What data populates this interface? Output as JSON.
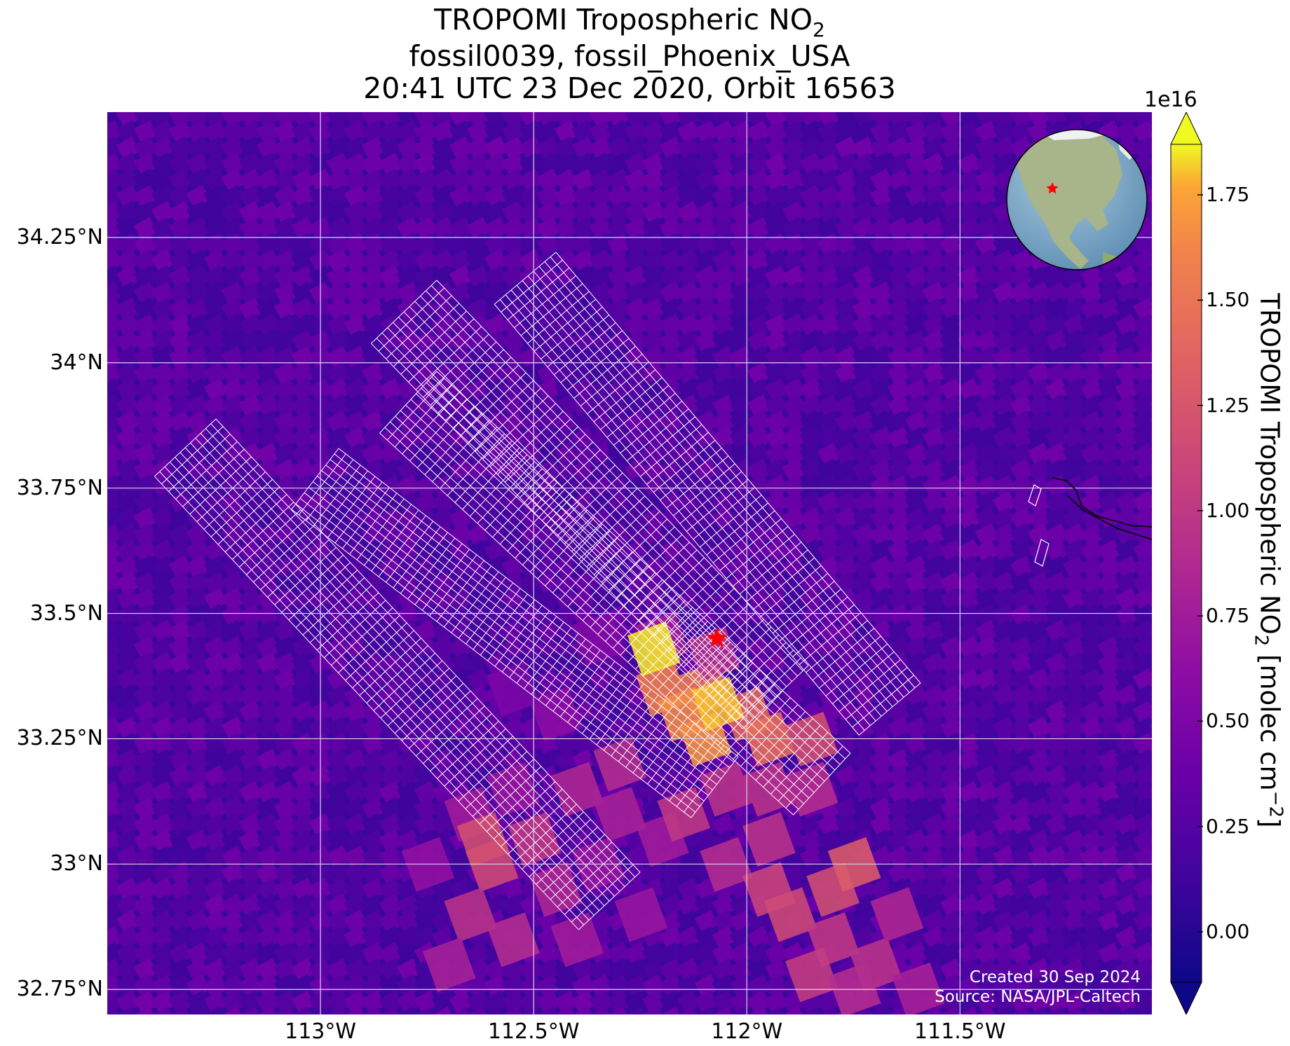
{
  "title": {
    "line1_prefix": "TROPOMI Tropospheric NO",
    "line1_sub": "2",
    "line2": "fossil0039, fossil_Phoenix_USA",
    "line3": "20:41 UTC 23 Dec 2020, Orbit 16563"
  },
  "map": {
    "projection_extent": {
      "lon": [
        -113.5,
        -111.05
      ],
      "lat": [
        32.7,
        34.5
      ]
    },
    "lat_ticks": [
      {
        "value": 34.25,
        "label": "34.25°N"
      },
      {
        "value": 34.0,
        "label": "34°N"
      },
      {
        "value": 33.75,
        "label": "33.75°N"
      },
      {
        "value": 33.5,
        "label": "33.5°N"
      },
      {
        "value": 33.25,
        "label": "33.25°N"
      },
      {
        "value": 33.0,
        "label": "33°N"
      },
      {
        "value": 32.75,
        "label": "32.75°N"
      }
    ],
    "lon_ticks": [
      {
        "value": -113.0,
        "label": "113°W"
      },
      {
        "value": -112.5,
        "label": "112.5°W"
      },
      {
        "value": -112.0,
        "label": "112°W"
      },
      {
        "value": -111.5,
        "label": "111.5°W"
      }
    ],
    "target_marker": {
      "lon": -112.07,
      "lat": 33.45,
      "symbol": "star",
      "color": "#ff0000"
    },
    "inset_globe": {
      "region": "North America",
      "marker_color": "#ff0000"
    }
  },
  "colorbar": {
    "colormap": "plasma",
    "vmin": -0.12,
    "vmax": 1.87,
    "exponent_label": "1e16",
    "ticks": [
      {
        "value": 0.0,
        "label": "0.00"
      },
      {
        "value": 0.25,
        "label": "0.25"
      },
      {
        "value": 0.5,
        "label": "0.50"
      },
      {
        "value": 0.75,
        "label": "0.75"
      },
      {
        "value": 1.0,
        "label": "1.00"
      },
      {
        "value": 1.25,
        "label": "1.25"
      },
      {
        "value": 1.5,
        "label": "1.50"
      },
      {
        "value": 1.75,
        "label": "1.75"
      }
    ],
    "label_prefix": "TROPOMI Tropospheric NO",
    "label_sub": "2",
    "label_mid": " [molec cm",
    "label_sup": "−2",
    "label_end": "]"
  },
  "credits": {
    "created": "Created 30 Sep 2024",
    "source": "Source: NASA/JPL-Caltech"
  }
}
